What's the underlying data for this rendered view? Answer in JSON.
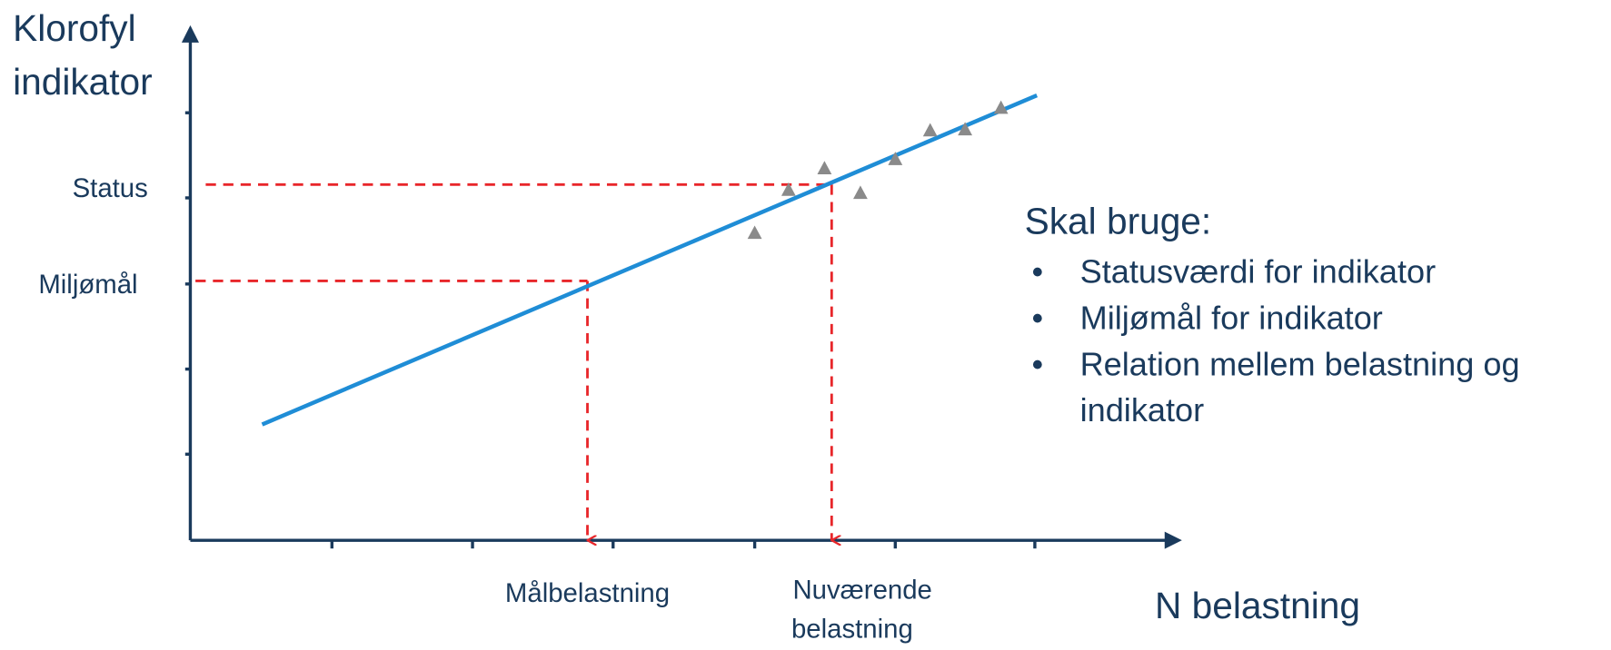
{
  "y_axis": {
    "label_lines": [
      "Klorofyl",
      "indikator"
    ]
  },
  "x_axis": {
    "label": "N belastning"
  },
  "levels": {
    "status": "Status",
    "target": "Miljømål"
  },
  "loads": {
    "target": "Målbelastning",
    "current_lines": [
      "Nuværende",
      "belastning"
    ]
  },
  "notes": {
    "title": "Skal bruge:",
    "items": [
      [
        "Statusværdi for indikator"
      ],
      [
        "Miljømål for indikator"
      ],
      [
        "Relation mellem belastning og",
        "indikator"
      ]
    ]
  }
}
